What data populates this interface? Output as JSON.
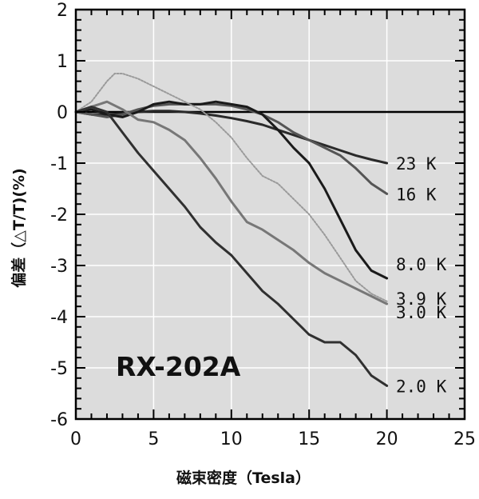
{
  "chart_data": {
    "type": "line",
    "title": "",
    "xlabel": "磁束密度（Tesla）",
    "ylabel": "偏差（△T/T)(%)",
    "xlim": [
      0,
      25
    ],
    "ylim": [
      -6,
      2
    ],
    "xticks": [
      0,
      5,
      10,
      15,
      20,
      25
    ],
    "yticks": [
      2,
      1,
      0,
      -1,
      -2,
      -3,
      -4,
      -5,
      -6
    ],
    "grid": true,
    "annotation": "RX-202A",
    "colors": {
      "plot_bg": "#dcdcdc",
      "grid": "#ffffff",
      "axis": "#000000"
    },
    "series": [
      {
        "name": "23 K",
        "color": "#2a2a2a",
        "x": [
          0,
          1,
          2,
          3,
          4,
          5,
          6,
          7,
          8,
          9,
          10,
          11,
          12,
          13,
          14,
          15,
          16,
          17,
          18,
          19,
          20
        ],
        "y": [
          0,
          -0.05,
          -0.05,
          -0.03,
          0,
          0.02,
          0.02,
          0,
          -0.03,
          -0.07,
          -0.12,
          -0.18,
          -0.25,
          -0.35,
          -0.45,
          -0.55,
          -0.65,
          -0.75,
          -0.85,
          -0.93,
          -1.0
        ]
      },
      {
        "name": "16 K",
        "color": "#555555",
        "x": [
          0,
          1,
          2,
          3,
          4,
          5,
          6,
          7,
          8,
          9,
          10,
          11,
          12,
          13,
          14,
          15,
          16,
          17,
          18,
          19,
          20
        ],
        "y": [
          0,
          -0.05,
          -0.1,
          -0.05,
          0.05,
          0.12,
          0.15,
          0.15,
          0.15,
          0.15,
          0.12,
          0.05,
          -0.05,
          -0.2,
          -0.4,
          -0.55,
          -0.7,
          -0.85,
          -1.1,
          -1.4,
          -1.6
        ]
      },
      {
        "name": "8.0 K",
        "color": "#1a1a1a",
        "x": [
          0,
          1,
          2,
          3,
          4,
          5,
          6,
          7,
          8,
          9,
          10,
          11,
          12,
          13,
          14,
          15,
          16,
          17,
          18,
          19,
          20
        ],
        "y": [
          0,
          0.05,
          -0.05,
          -0.1,
          0,
          0.15,
          0.2,
          0.15,
          0.15,
          0.2,
          0.15,
          0.1,
          -0.05,
          -0.35,
          -0.7,
          -1.0,
          -1.5,
          -2.1,
          -2.7,
          -3.1,
          -3.25
        ]
      },
      {
        "name": "3.9 K",
        "color": "#9a9a9a",
        "x": [
          0,
          1,
          2,
          2.5,
          3,
          4,
          5,
          6,
          7,
          8,
          9,
          10,
          11,
          12,
          13,
          14,
          15,
          16,
          17,
          18,
          19,
          20
        ],
        "y": [
          0,
          0.2,
          0.6,
          0.75,
          0.75,
          0.65,
          0.5,
          0.35,
          0.2,
          0.05,
          -0.2,
          -0.5,
          -0.9,
          -1.25,
          -1.4,
          -1.7,
          -2.0,
          -2.4,
          -2.85,
          -3.3,
          -3.55,
          -3.7
        ]
      },
      {
        "name": "3.0 K",
        "color": "#777777",
        "x": [
          0,
          1,
          2,
          3,
          4,
          5,
          6,
          7,
          8,
          9,
          10,
          11,
          12,
          13,
          14,
          15,
          16,
          17,
          18,
          19,
          20
        ],
        "y": [
          0,
          0.1,
          0.2,
          0.05,
          -0.15,
          -0.2,
          -0.35,
          -0.55,
          -0.9,
          -1.3,
          -1.75,
          -2.15,
          -2.3,
          -2.5,
          -2.7,
          -2.95,
          -3.15,
          -3.3,
          -3.45,
          -3.6,
          -3.75
        ]
      },
      {
        "name": "2.0 K",
        "color": "#303030",
        "x": [
          0,
          1,
          2,
          3,
          4,
          5,
          6,
          7,
          8,
          9,
          10,
          11,
          12,
          13,
          14,
          15,
          16,
          17,
          18,
          19,
          20
        ],
        "y": [
          0,
          0.1,
          0,
          -0.4,
          -0.8,
          -1.15,
          -1.5,
          -1.85,
          -2.25,
          -2.55,
          -2.8,
          -3.15,
          -3.5,
          -3.75,
          -4.05,
          -4.35,
          -4.5,
          -4.5,
          -4.75,
          -5.15,
          -5.35
        ]
      }
    ],
    "labels": [
      "23 K",
      "16 K",
      "8.0 K",
      "3.9 K",
      "3.0 K",
      "2.0 K"
    ]
  }
}
